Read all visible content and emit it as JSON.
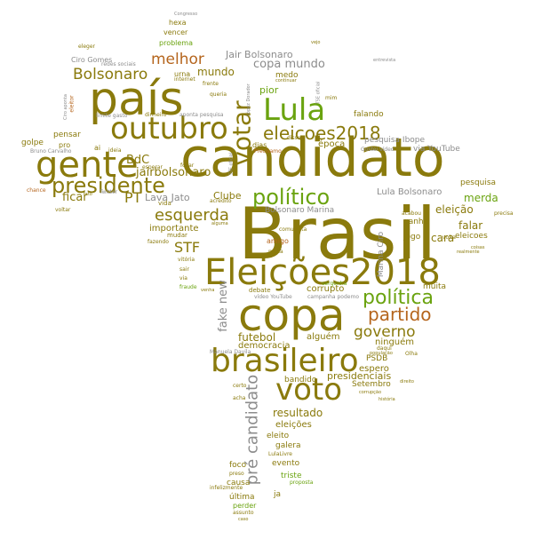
{
  "colors": {
    "olive": "#8a7a0c",
    "green": "#6aa30f",
    "rust": "#b5651d",
    "gray": "#8c8c8c"
  },
  "words": [
    {
      "id": "brasil",
      "text": "Brasil",
      "color": "olive",
      "rot": 0
    },
    {
      "id": "candidato",
      "text": "candidato",
      "color": "olive",
      "rot": 0
    },
    {
      "id": "pais",
      "text": "país",
      "color": "olive",
      "rot": 0
    },
    {
      "id": "copa",
      "text": "copa",
      "color": "olive",
      "rot": 0
    },
    {
      "id": "eleicoes2018-cap",
      "text": "Eleições2018",
      "color": "olive",
      "rot": 0
    },
    {
      "id": "gente",
      "text": "gente",
      "color": "olive",
      "rot": 0
    },
    {
      "id": "brasileiro",
      "text": "brasileiro",
      "color": "olive",
      "rot": 0
    },
    {
      "id": "outubro",
      "text": "outubro",
      "color": "olive",
      "rot": 0
    },
    {
      "id": "lula",
      "text": "Lula",
      "color": "green",
      "rot": 0
    },
    {
      "id": "voto",
      "text": "voto",
      "color": "olive",
      "rot": 0
    },
    {
      "id": "votar",
      "text": "votar",
      "color": "olive",
      "rot": -90
    },
    {
      "id": "presidente",
      "text": "presidente",
      "color": "olive",
      "rot": 0
    },
    {
      "id": "politico",
      "text": "político",
      "color": "green",
      "rot": 0
    },
    {
      "id": "eleicoes2018",
      "text": "eleicoes2018",
      "color": "olive",
      "rot": 0
    },
    {
      "id": "politica",
      "text": "política",
      "color": "green",
      "rot": 0
    },
    {
      "id": "partido",
      "text": "partido",
      "color": "rust",
      "rot": 0
    },
    {
      "id": "bolsonaro",
      "text": "Bolsonaro",
      "color": "olive",
      "rot": 0
    },
    {
      "id": "esquerda",
      "text": "esquerda",
      "color": "olive",
      "rot": 0
    },
    {
      "id": "pre-candidato",
      "text": "pré candidato",
      "color": "gray",
      "rot": -90
    },
    {
      "id": "melhor",
      "text": "melhor",
      "color": "rust",
      "rot": 0
    },
    {
      "id": "governo",
      "text": "governo",
      "color": "olive",
      "rot": 0
    },
    {
      "id": "jairbolsonaro",
      "text": "jairbolsonaro",
      "color": "olive",
      "rot": 0
    },
    {
      "id": "stf",
      "text": "STF",
      "color": "olive",
      "rot": 0
    },
    {
      "id": "copa-mundo",
      "text": "copa mundo",
      "color": "gray",
      "rot": 0
    },
    {
      "id": "fake-new",
      "text": "fake new",
      "color": "gray",
      "rot": -90
    },
    {
      "id": "pt",
      "text": "PT",
      "color": "olive",
      "rot": 0
    },
    {
      "id": "ficar",
      "text": "ficar",
      "color": "olive",
      "rot": 0
    },
    {
      "id": "futebol",
      "text": "futebol",
      "color": "olive",
      "rot": 0
    },
    {
      "id": "bdc",
      "text": "BdC",
      "color": "olive",
      "rot": 0
    },
    {
      "id": "jair-bolsonaro",
      "text": "Jair Bolsonaro",
      "color": "gray",
      "rot": 0
    },
    {
      "id": "mundo",
      "text": "mundo",
      "color": "olive",
      "rot": 0
    },
    {
      "id": "resultado",
      "text": "resultado",
      "color": "olive",
      "rot": 0
    },
    {
      "id": "merda",
      "text": "merda",
      "color": "green",
      "rot": 0
    },
    {
      "id": "lava-jato",
      "text": "Lava Jato",
      "color": "gray",
      "rot": 0
    },
    {
      "id": "clube",
      "text": "Clube",
      "color": "olive",
      "rot": 0
    },
    {
      "id": "falar",
      "text": "falar",
      "color": "olive",
      "rot": 0
    },
    {
      "id": "cara",
      "text": "cara",
      "color": "olive",
      "rot": 0
    },
    {
      "id": "eleicao",
      "text": "eleição",
      "color": "olive",
      "rot": 0
    },
    {
      "id": "pior",
      "text": "pior",
      "color": "green",
      "rot": 0
    },
    {
      "id": "epoca",
      "text": "época",
      "color": "olive",
      "rot": 0
    },
    {
      "id": "lula-bolsonaro",
      "text": "Lula Bolsonaro",
      "color": "gray",
      "rot": 0
    },
    {
      "id": "bolsonaro-marina",
      "text": "Bolsonaro Marina",
      "color": "gray",
      "rot": 0
    },
    {
      "id": "pesquisa-ibope",
      "text": "pesquisa Ibope",
      "color": "gray",
      "rot": 0
    },
    {
      "id": "medo",
      "text": "medo",
      "color": "olive",
      "rot": 0
    },
    {
      "id": "corrupto",
      "text": "corrupto",
      "color": "olive",
      "rot": 0
    },
    {
      "id": "importante",
      "text": "importante",
      "color": "olive",
      "rot": 0
    },
    {
      "id": "democracia",
      "text": "democracia",
      "color": "olive",
      "rot": 0
    },
    {
      "id": "alguem",
      "text": "alguém",
      "color": "olive",
      "rot": 0
    },
    {
      "id": "ninguem",
      "text": "ninguém",
      "color": "olive",
      "rot": 0
    },
    {
      "id": "espero",
      "text": "espero",
      "color": "olive",
      "rot": 0
    },
    {
      "id": "presidenciais",
      "text": "presidenciais",
      "color": "olive",
      "rot": 0
    },
    {
      "id": "setembro",
      "text": "Setembro",
      "color": "olive",
      "rot": 0
    },
    {
      "id": "bandido",
      "text": "bandido",
      "color": "olive",
      "rot": 0
    },
    {
      "id": "eleicoes",
      "text": "eleições",
      "color": "olive",
      "rot": 0
    },
    {
      "id": "eleito",
      "text": "eleito",
      "color": "olive",
      "rot": 0
    },
    {
      "id": "galera",
      "text": "galera",
      "color": "olive",
      "rot": 0
    },
    {
      "id": "evento",
      "text": "evento",
      "color": "olive",
      "rot": 0
    },
    {
      "id": "foco",
      "text": "foco",
      "color": "olive",
      "rot": 0
    },
    {
      "id": "triste",
      "text": "triste",
      "color": "green",
      "rot": 0
    },
    {
      "id": "causa",
      "text": "causa",
      "color": "olive",
      "rot": 0
    },
    {
      "id": "ultima",
      "text": "última",
      "color": "olive",
      "rot": 0
    },
    {
      "id": "perder",
      "text": "perder",
      "color": "green",
      "rot": 0
    },
    {
      "id": "ja",
      "text": "ja",
      "color": "olive",
      "rot": 0
    },
    {
      "id": "marina-ciro",
      "text": "Marina Ciro",
      "color": "gray",
      "rot": -90
    },
    {
      "id": "jogo",
      "text": "jogo",
      "color": "olive",
      "rot": 0
    },
    {
      "id": "ganha",
      "text": "ganha",
      "color": "olive",
      "rot": 0
    },
    {
      "id": "eleicoes-lc",
      "text": "eleicoes",
      "color": "olive",
      "rot": 0
    },
    {
      "id": "pesquisa",
      "text": "pesquisa",
      "color": "olive",
      "rot": 0
    },
    {
      "id": "muita",
      "text": "muita",
      "color": "olive",
      "rot": 0
    },
    {
      "id": "psdb",
      "text": "PSDB",
      "color": "olive",
      "rot": 0
    },
    {
      "id": "falando",
      "text": "falando",
      "color": "olive",
      "rot": 0
    },
    {
      "id": "via-youtube",
      "text": "via YouTube",
      "color": "gray",
      "rot": 0
    },
    {
      "id": "pensar",
      "text": "pensar",
      "color": "olive",
      "rot": 0
    },
    {
      "id": "golpe",
      "text": "golpe",
      "color": "olive",
      "rot": 0
    },
    {
      "id": "pro",
      "text": "pro",
      "color": "olive",
      "rot": 0
    },
    {
      "id": "ai",
      "text": "ai",
      "color": "olive",
      "rot": 0
    },
    {
      "id": "dias",
      "text": "dias",
      "color": "olive",
      "rot": 0
    },
    {
      "id": "amigo",
      "text": "amigo",
      "color": "rust",
      "rot": 0
    },
    {
      "id": "hexa",
      "text": "hexa",
      "color": "olive",
      "rot": 0
    },
    {
      "id": "vencer",
      "text": "vencer",
      "color": "olive",
      "rot": 0
    },
    {
      "id": "problema",
      "text": "problema",
      "color": "green",
      "rot": 0
    },
    {
      "id": "ciro-gomes",
      "text": "Ciro Gomes",
      "color": "gray",
      "rot": 0
    },
    {
      "id": "urna",
      "text": "urna",
      "color": "olive",
      "rot": 0
    },
    {
      "id": "mudar",
      "text": "mudar",
      "color": "olive",
      "rot": 0
    },
    {
      "id": "vida",
      "text": "vida",
      "color": "olive",
      "rot": 0
    },
    {
      "id": "debate",
      "text": "debate",
      "color": "olive",
      "rot": 0
    },
    {
      "id": "congresso",
      "text": "Congresso",
      "color": "gray",
      "rot": 0
    },
    {
      "id": "eleger",
      "text": "eleger",
      "color": "olive",
      "rot": 0
    },
    {
      "id": "redes-sociais",
      "text": "redes sociais",
      "color": "gray",
      "rot": 0
    },
    {
      "id": "internet",
      "text": "internet",
      "color": "olive",
      "rot": 0
    },
    {
      "id": "frente",
      "text": "frente",
      "color": "olive",
      "rot": 0
    },
    {
      "id": "queria",
      "text": "queria",
      "color": "olive",
      "rot": 0
    },
    {
      "id": "eleitor",
      "text": "eleitor",
      "color": "rust",
      "rot": -90
    },
    {
      "id": "ciro-aponta",
      "text": "Ciro aponta",
      "color": "gray",
      "rot": -90
    },
    {
      "id": "limite-gasto",
      "text": "limite gasto",
      "color": "gray",
      "rot": 0
    },
    {
      "id": "dinheiro",
      "text": "dinheiro",
      "color": "olive",
      "rot": 0
    },
    {
      "id": "aponta-pesquisa",
      "text": "aponta pesquisa",
      "color": "gray",
      "rot": 0
    },
    {
      "id": "bruno-carvalho",
      "text": "Bruno Carvalho",
      "color": "gray",
      "rot": 0
    },
    {
      "id": "ideia",
      "text": "ideia",
      "color": "olive",
      "rot": 0
    },
    {
      "id": "esperar",
      "text": "esperar",
      "color": "olive",
      "rot": 0
    },
    {
      "id": "focar",
      "text": "focar",
      "color": "olive",
      "rot": 0
    },
    {
      "id": "chance",
      "text": "chance",
      "color": "rust",
      "rot": 0
    },
    {
      "id": "fato",
      "text": "fato",
      "color": "olive",
      "rot": 0
    },
    {
      "id": "twitter",
      "text": "Twitter",
      "color": "gray",
      "rot": 0
    },
    {
      "id": "voltar",
      "text": "voltar",
      "color": "olive",
      "rot": 0
    },
    {
      "id": "fazendo",
      "text": "fazendo",
      "color": "olive",
      "rot": 0
    },
    {
      "id": "vitoria",
      "text": "vitória",
      "color": "olive",
      "rot": 0
    },
    {
      "id": "sair",
      "text": "sair",
      "color": "olive",
      "rot": 0
    },
    {
      "id": "via",
      "text": "via",
      "color": "olive",
      "rot": 0
    },
    {
      "id": "fraude",
      "text": "fraude",
      "color": "green",
      "rot": 0
    },
    {
      "id": "venha",
      "text": "venha",
      "color": "olive",
      "rot": 0
    },
    {
      "id": "comunista",
      "text": "comunista",
      "color": "olive",
      "rot": 0
    },
    {
      "id": "midia",
      "text": "midia",
      "color": "olive",
      "rot": 0
    },
    {
      "id": "vergonha",
      "text": "vergonha",
      "color": "green",
      "rot": 0
    },
    {
      "id": "video-youtube",
      "text": "vídeo YouTube",
      "color": "gray",
      "rot": 0
    },
    {
      "id": "campanha-podemo",
      "text": "campanha podemo",
      "color": "gray",
      "rot": 0
    },
    {
      "id": "acabou",
      "text": "acabou",
      "color": "olive",
      "rot": 0
    },
    {
      "id": "precisa",
      "text": "precisa",
      "color": "olive",
      "rot": 0
    },
    {
      "id": "volta",
      "text": "volta",
      "color": "olive",
      "rot": 0
    },
    {
      "id": "coisas",
      "text": "coisas",
      "color": "olive",
      "rot": 0
    },
    {
      "id": "realmente",
      "text": "realmente",
      "color": "olive",
      "rot": 0
    },
    {
      "id": "daqui",
      "text": "daqui",
      "color": "olive",
      "rot": 0
    },
    {
      "id": "manuela-davila",
      "text": "Manuela Davila",
      "color": "gray",
      "rot": 0
    },
    {
      "id": "certo",
      "text": "certo",
      "color": "olive",
      "rot": 0
    },
    {
      "id": "acha",
      "text": "acha",
      "color": "olive",
      "rot": 0
    },
    {
      "id": "corrupcao",
      "text": "corrupção",
      "color": "olive",
      "rot": 0
    },
    {
      "id": "historia",
      "text": "história",
      "color": "olive",
      "rot": 0
    },
    {
      "id": "lulalivre",
      "text": "LulaLivre",
      "color": "olive",
      "rot": 0
    },
    {
      "id": "proposta",
      "text": "proposta",
      "color": "green",
      "rot": 0
    },
    {
      "id": "preso",
      "text": "preso",
      "color": "olive",
      "rot": 0
    },
    {
      "id": "infelizmente",
      "text": "infelizmente",
      "color": "olive",
      "rot": 0
    },
    {
      "id": "assunto",
      "text": "assunto",
      "color": "olive",
      "rot": 0
    },
    {
      "id": "caso",
      "text": "caso",
      "color": "olive",
      "rot": 0
    },
    {
      "id": "continuar",
      "text": "continuar",
      "color": "olive",
      "rot": 0
    },
    {
      "id": "precisamo",
      "text": "Precisamo",
      "color": "rust",
      "rot": 0
    },
    {
      "id": "disso",
      "text": "disso",
      "color": "olive",
      "rot": 0
    },
    {
      "id": "gostei-video",
      "text": "Gostei vídeo",
      "color": "gray",
      "rot": 0
    },
    {
      "id": "tse-oficial",
      "text": "TSE oficial",
      "color": "gray",
      "rot": -90
    },
    {
      "id": "stf-oficial",
      "text": "STF oficial",
      "color": "gray",
      "rot": -90
    },
    {
      "id": "lopez-dorador",
      "text": "López Dorador",
      "color": "gray",
      "rot": -90
    },
    {
      "id": "vejo",
      "text": "vejo",
      "color": "olive",
      "rot": 0
    },
    {
      "id": "alguma",
      "text": "alguma",
      "color": "olive",
      "rot": 0
    },
    {
      "id": "acredito",
      "text": "acredito",
      "color": "olive",
      "rot": 0
    },
    {
      "id": "populacao",
      "text": "população",
      "color": "olive",
      "rot": 0
    },
    {
      "id": "entrevista",
      "text": "entrevista",
      "color": "gray",
      "rot": 0
    },
    {
      "id": "mim",
      "text": "mim",
      "color": "olive",
      "rot": 0
    },
    {
      "id": "olha",
      "text": "Olha",
      "color": "olive",
      "rot": 0
    },
    {
      "id": "direito",
      "text": "direito",
      "color": "olive",
      "rot": 0
    }
  ]
}
